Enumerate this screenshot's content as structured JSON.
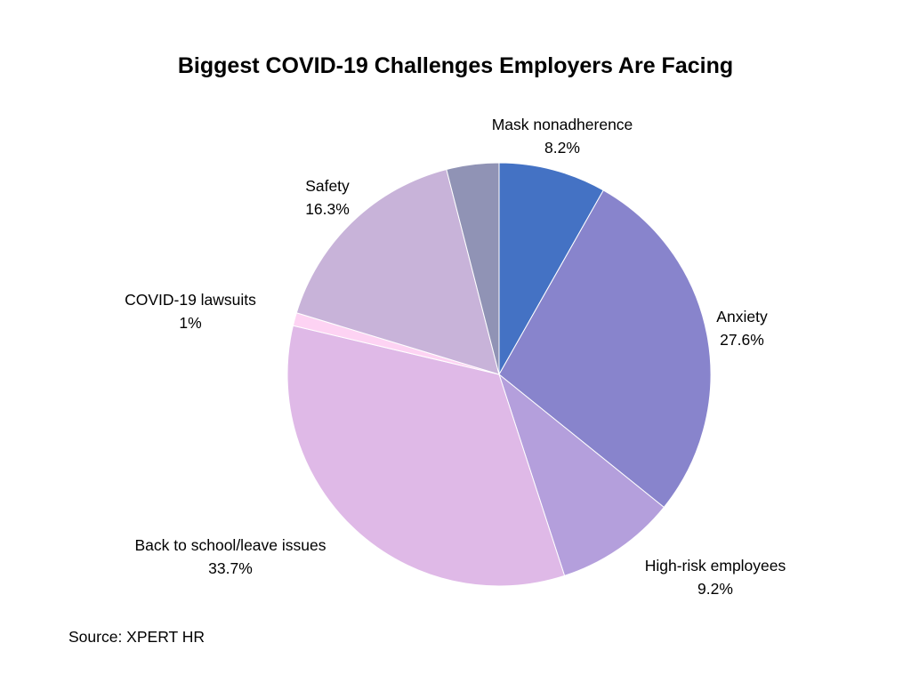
{
  "chart_data": {
    "type": "pie",
    "title": "Biggest COVID-19 Challenges Employers Are Facing",
    "source": "Source: XPERT HR",
    "slices": [
      {
        "label": "Mask nonadherence",
        "value": 8.2,
        "value_text": "8.2%",
        "color": "#4472c4"
      },
      {
        "label": "Anxiety",
        "value": 27.6,
        "value_text": "27.6%",
        "color": "#8884cc"
      },
      {
        "label": "High-risk employees",
        "value": 9.2,
        "value_text": "9.2%",
        "color": "#b49fdc"
      },
      {
        "label": "Back to school/leave issues",
        "value": 33.7,
        "value_text": "33.7%",
        "color": "#dfb9e7"
      },
      {
        "label": "COVID-19 lawsuits",
        "value": 1,
        "value_text": "1%",
        "color": "#fdd3f3"
      },
      {
        "label": "Safety",
        "value": 16.3,
        "value_text": "16.3%",
        "color": "#c8b3d9"
      },
      {
        "label": "",
        "value": 4.0,
        "value_text": "",
        "color": "#9093b5"
      }
    ]
  }
}
